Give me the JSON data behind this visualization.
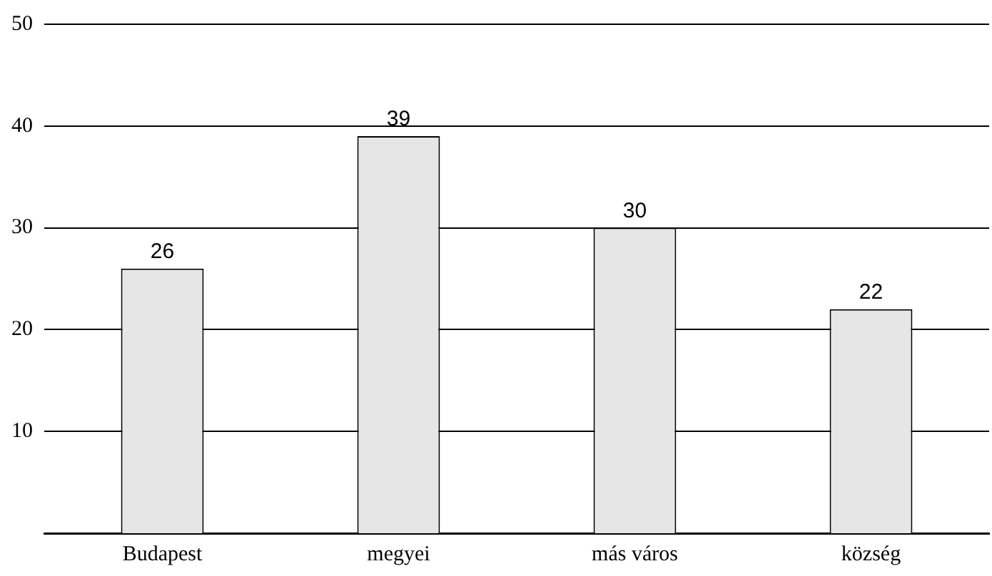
{
  "chart_data": {
    "type": "bar",
    "categories": [
      "Budapest",
      "megyei",
      "más város",
      "község"
    ],
    "values": [
      26,
      39,
      30,
      22
    ],
    "color": "#e6e6e6",
    "ylim": [
      0,
      50
    ],
    "yticks": [
      10,
      20,
      30,
      40,
      50
    ],
    "grid": "y",
    "data_labels": true,
    "legend": false
  }
}
